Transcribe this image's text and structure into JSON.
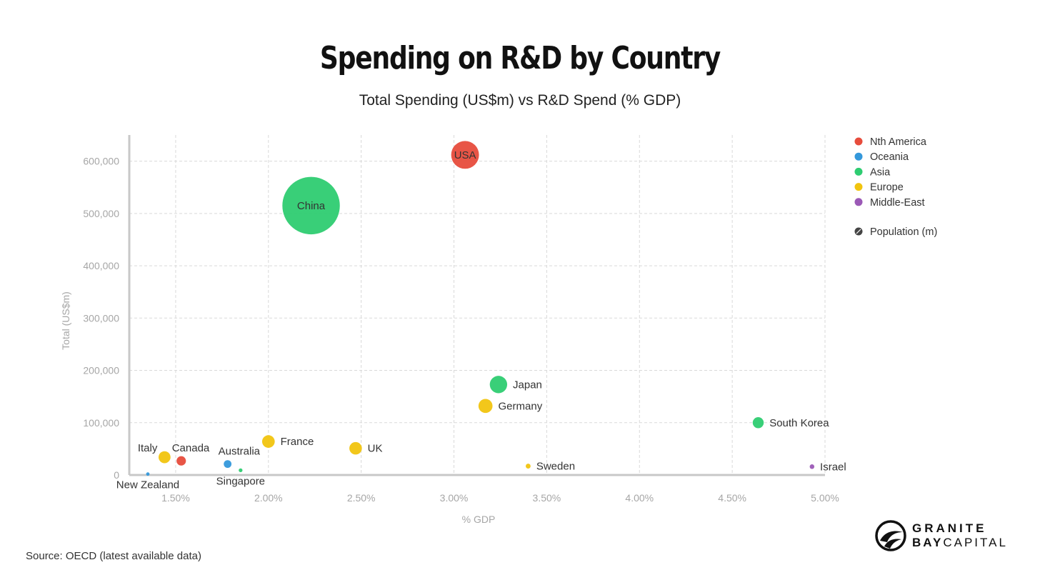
{
  "title": "Spending on R&D by Country",
  "subtitle": "Total Spending (US$m) vs R&D Spend (% GDP)",
  "source": "Source: OECD (latest available data)",
  "brand": {
    "line1": "GRANITE",
    "line2_bold": "BAY",
    "line2_rest": "CAPITAL"
  },
  "chart_data": {
    "type": "scatter",
    "title": "Spending on R&D by Country",
    "subtitle": "Total Spending (US$m) vs R&D Spend (% GDP)",
    "xlabel": "% GDP",
    "ylabel": "Total (US$m)",
    "xlim": [
      1.25,
      5.0
    ],
    "ylim": [
      0,
      650000
    ],
    "x_ticks": [
      1.5,
      2.0,
      2.5,
      3.0,
      3.5,
      4.0,
      4.5,
      5.0
    ],
    "x_tick_labels": [
      "1.50%",
      "2.00%",
      "2.50%",
      "3.00%",
      "3.50%",
      "4.00%",
      "4.50%",
      "5.00%"
    ],
    "y_ticks": [
      0,
      100000,
      200000,
      300000,
      400000,
      500000,
      600000
    ],
    "y_tick_labels": [
      "0",
      "100,000",
      "200,000",
      "300,000",
      "400,000",
      "500,000",
      "600,000"
    ],
    "size_legend": "Population (m)",
    "legend_position": "right",
    "grid": true,
    "series": [
      {
        "name": "Nth America",
        "color": "#e74c3c"
      },
      {
        "name": "Oceania",
        "color": "#3498db"
      },
      {
        "name": "Asia",
        "color": "#2ecc71"
      },
      {
        "name": "Europe",
        "color": "#f1c40f"
      },
      {
        "name": "Middle-East",
        "color": "#9b59b6"
      }
    ],
    "points": [
      {
        "label": "USA",
        "series": "Nth America",
        "x": 3.06,
        "y": 612000,
        "population": 325,
        "label_pos": "center"
      },
      {
        "label": "China",
        "series": "Asia",
        "x": 2.23,
        "y": 515000,
        "population": 1386,
        "label_pos": "center"
      },
      {
        "label": "Japan",
        "series": "Asia",
        "x": 3.24,
        "y": 173000,
        "population": 127,
        "label_pos": "right"
      },
      {
        "label": "Germany",
        "series": "Europe",
        "x": 3.17,
        "y": 132000,
        "population": 83,
        "label_pos": "right"
      },
      {
        "label": "South Korea",
        "series": "Asia",
        "x": 4.64,
        "y": 100000,
        "population": 51,
        "label_pos": "right"
      },
      {
        "label": "France",
        "series": "Europe",
        "x": 2.0,
        "y": 64000,
        "population": 67,
        "label_pos": "right"
      },
      {
        "label": "UK",
        "series": "Europe",
        "x": 2.47,
        "y": 51000,
        "population": 66,
        "label_pos": "right"
      },
      {
        "label": "Italy",
        "series": "Europe",
        "x": 1.44,
        "y": 34000,
        "population": 60,
        "label_pos": "upper-left"
      },
      {
        "label": "Canada",
        "series": "Nth America",
        "x": 1.53,
        "y": 27000,
        "population": 37,
        "label_pos": "upper-right"
      },
      {
        "label": "Australia",
        "series": "Oceania",
        "x": 1.78,
        "y": 21000,
        "population": 25,
        "label_pos": "upper-right"
      },
      {
        "label": "Sweden",
        "series": "Europe",
        "x": 3.4,
        "y": 17000,
        "population": 10,
        "label_pos": "right"
      },
      {
        "label": "Israel",
        "series": "Middle-East",
        "x": 4.93,
        "y": 16000,
        "population": 9,
        "label_pos": "right"
      },
      {
        "label": "Singapore",
        "series": "Asia",
        "x": 1.85,
        "y": 9000,
        "population": 6,
        "label_pos": "below"
      },
      {
        "label": "New Zealand",
        "series": "Oceania",
        "x": 1.35,
        "y": 1800,
        "population": 5,
        "label_pos": "below"
      }
    ]
  }
}
